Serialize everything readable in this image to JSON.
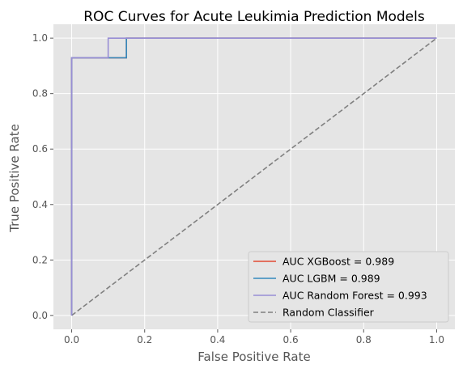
{
  "chart_data": {
    "type": "line",
    "title": "ROC Curves for Acute Leukimia Prediction Models",
    "xlabel": "False Positive Rate",
    "ylabel": "True Positive Rate",
    "xlim": [
      -0.05,
      1.05
    ],
    "ylim": [
      -0.05,
      1.05
    ],
    "x_ticks": [
      0.0,
      0.2,
      0.4,
      0.6,
      0.8,
      1.0
    ],
    "y_ticks": [
      0.0,
      0.2,
      0.4,
      0.6,
      0.8,
      1.0
    ],
    "x_tick_labels": [
      "0.0",
      "0.2",
      "0.4",
      "0.6",
      "0.8",
      "1.0"
    ],
    "y_tick_labels": [
      "0.0",
      "0.2",
      "0.4",
      "0.6",
      "0.8",
      "1.0"
    ],
    "grid": true,
    "background": "#e5e5e5",
    "legend_position": "lower right",
    "series": [
      {
        "name": "AUC XGBoost = 0.989",
        "color": "#e24a33",
        "style": "solid",
        "x": [
          0.0,
          0.0,
          0.15,
          0.15,
          1.0
        ],
        "y": [
          0.0,
          0.929,
          0.929,
          1.0,
          1.0
        ]
      },
      {
        "name": "AUC LGBM = 0.989",
        "color": "#348abd",
        "style": "solid",
        "x": [
          0.0,
          0.0,
          0.15,
          0.15,
          1.0
        ],
        "y": [
          0.0,
          0.929,
          0.929,
          1.0,
          1.0
        ]
      },
      {
        "name": "AUC Random Forest = 0.993",
        "color": "#988ed5",
        "style": "solid",
        "x": [
          0.0,
          0.0,
          0.1,
          0.1,
          1.0
        ],
        "y": [
          0.0,
          0.929,
          0.929,
          1.0,
          1.0
        ]
      },
      {
        "name": "Random Classifier",
        "color": "#808080",
        "style": "dashed",
        "x": [
          0.0,
          1.0
        ],
        "y": [
          0.0,
          1.0
        ]
      }
    ]
  }
}
